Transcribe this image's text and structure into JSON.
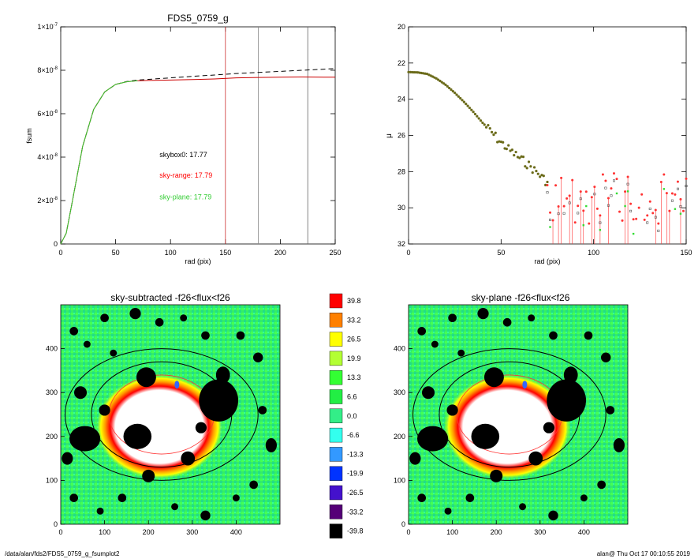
{
  "chart_data": [
    {
      "type": "line",
      "title": "FDS5_0759_g",
      "xlabel": "rad (pix)",
      "ylabel": "fsum",
      "xlim": [
        0,
        250
      ],
      "ylim": [
        0,
        1e-07
      ],
      "x_ticks": [
        "0",
        "50",
        "100",
        "150",
        "200",
        "250"
      ],
      "y_ticks": [
        {
          "value": 0,
          "mant": "0",
          "exp": ""
        },
        {
          "value": 2e-08,
          "mant": "2×10",
          "exp": "-8"
        },
        {
          "value": 4e-08,
          "mant": "4×10",
          "exp": "-8"
        },
        {
          "value": 6e-08,
          "mant": "6×10",
          "exp": "-8"
        },
        {
          "value": 8e-08,
          "mant": "8×10",
          "exp": "-8"
        },
        {
          "value": 1e-07,
          "mant": "1×10",
          "exp": "-7"
        }
      ],
      "series": [
        {
          "color": "#000000",
          "dash": true,
          "x": [
            0,
            5,
            10,
            20,
            30,
            40,
            50,
            60,
            70,
            80,
            100,
            120,
            140,
            160,
            180,
            200,
            220,
            240,
            250
          ],
          "y": [
            0,
            5e-09,
            1.8e-08,
            4.5e-08,
            6.2e-08,
            7e-08,
            7.35e-08,
            7.48e-08,
            7.55e-08,
            7.58e-08,
            7.65e-08,
            7.72e-08,
            7.78e-08,
            7.85e-08,
            7.9e-08,
            7.95e-08,
            8e-08,
            8.05e-08,
            8.08e-08
          ]
        },
        {
          "color": "#cc0000",
          "dash": false,
          "x": [
            0,
            5,
            10,
            20,
            30,
            40,
            50,
            60,
            70,
            80,
            100,
            120,
            140,
            160,
            180,
            200,
            220,
            240,
            250
          ],
          "y": [
            0,
            5e-09,
            1.8e-08,
            4.5e-08,
            6.2e-08,
            7e-08,
            7.35e-08,
            7.47e-08,
            7.52e-08,
            7.53e-08,
            7.55e-08,
            7.57e-08,
            7.6e-08,
            7.65e-08,
            7.67e-08,
            7.68e-08,
            7.69e-08,
            7.68e-08,
            7.68e-08
          ]
        },
        {
          "color": "#33cc33",
          "dash": false,
          "x": [
            0,
            5,
            10,
            20,
            30,
            40,
            50,
            60,
            70
          ],
          "y": [
            0,
            5e-09,
            1.8e-08,
            4.5e-08,
            6.2e-08,
            7e-08,
            7.35e-08,
            7.47e-08,
            7.52e-08
          ]
        }
      ],
      "vlines": [
        {
          "x": 150,
          "color": "#cc3333"
        },
        {
          "x": 180,
          "color": "#888888"
        },
        {
          "x": 225,
          "color": "#666666"
        }
      ],
      "annotations": [
        {
          "text": "skybox0: 17.77",
          "color": "#000000",
          "x": 90,
          "y": 4e-08
        },
        {
          "text": "sky-range: 17.79",
          "color": "#ff0000",
          "x": 90,
          "y": 3.05e-08
        },
        {
          "text": "sky-plane: 17.79",
          "color": "#33cc33",
          "x": 90,
          "y": 2.05e-08
        }
      ]
    },
    {
      "type": "scatter",
      "title": "",
      "xlabel": "rad (pix)",
      "ylabel": "μ",
      "xlim": [
        0,
        150
      ],
      "ylim": [
        32,
        20
      ],
      "x_ticks": [
        "0",
        "50",
        "100",
        "150"
      ],
      "y_ticks": [
        "20",
        "22",
        "24",
        "26",
        "28",
        "30",
        "32"
      ],
      "profile": {
        "x": [
          0,
          5,
          10,
          15,
          20,
          25,
          30,
          35,
          40,
          45,
          50,
          55,
          60,
          65,
          70,
          75
        ],
        "y": [
          22.5,
          22.52,
          22.6,
          22.85,
          23.2,
          23.65,
          24.15,
          24.7,
          25.3,
          25.85,
          26.4,
          26.85,
          27.25,
          27.65,
          28.1,
          28.6
        ]
      },
      "outer_range": {
        "x0": 75,
        "x1": 150,
        "y_mean": 29.5,
        "y_spread": 1.4
      },
      "colors": {
        "profile": "#6b6b1a",
        "sky_range": "#ff3333",
        "sky_plane": "#33dd33",
        "skybox": "#333333"
      }
    },
    {
      "type": "heatmap",
      "title": "sky-subtracted -f26<flux<f26",
      "x_ticks": [
        "0",
        "100",
        "200",
        "300",
        "400"
      ],
      "y_ticks": [
        "0",
        "100",
        "200",
        "300",
        "400"
      ],
      "xlim": [
        0,
        500
      ],
      "ylim": [
        0,
        500
      ]
    },
    {
      "type": "heatmap",
      "title": "sky-plane -f26<flux<f26",
      "x_ticks": [
        "0",
        "100",
        "200",
        "300",
        "400"
      ],
      "y_ticks": [
        "0",
        "100",
        "200",
        "300",
        "400"
      ],
      "xlim": [
        0,
        500
      ],
      "ylim": [
        0,
        500
      ]
    }
  ],
  "colorbar": {
    "labels": [
      "39.8",
      "33.2",
      "26.5",
      "19.9",
      "13.3",
      "6.6",
      "0.0",
      "-6.6",
      "-13.3",
      "-19.9",
      "-26.5",
      "-33.2",
      "-39.8"
    ],
    "colors": [
      "#ff0000",
      "#ff8000",
      "#ffff00",
      "#b3ff33",
      "#33ff33",
      "#22ee44",
      "#33ee88",
      "#33ffee",
      "#3399ff",
      "#0033ff",
      "#4411cc",
      "#550077",
      "#000000"
    ]
  },
  "footer": {
    "left": "/data/alan/fds2/FDS5_0759_g_fsumplot2",
    "right": "alan@  Thu Oct 17 00:10:55 2019"
  }
}
